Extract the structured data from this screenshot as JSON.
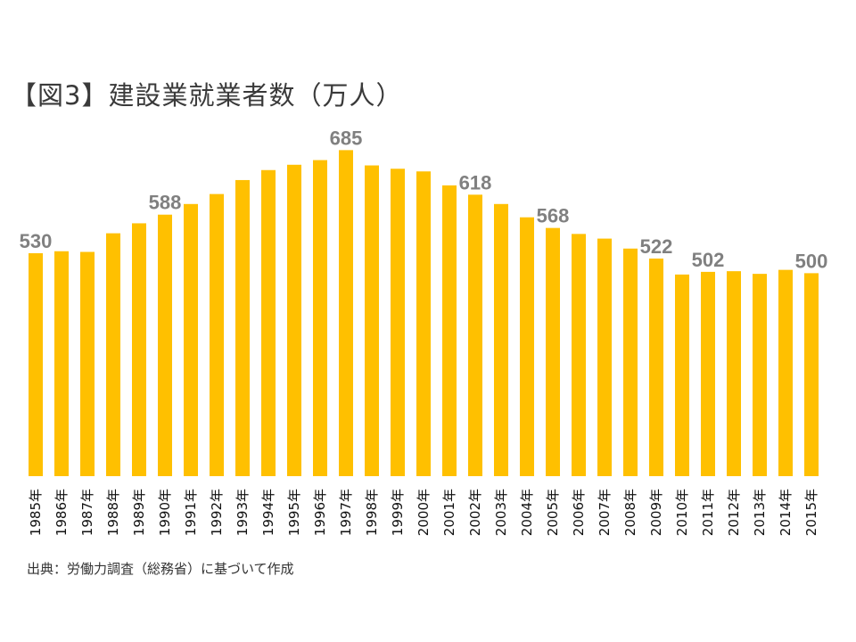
{
  "title": "【図3】建設業就業者数（万人）",
  "source": "出典：労働力調査（総務省）に基づいて作成",
  "bar_color": "#FFC000",
  "label_color": "#808080",
  "chart_data": {
    "type": "bar",
    "title": "【図3】建設業就業者数（万人）",
    "categories": [
      "1985年",
      "1986年",
      "1987年",
      "1988年",
      "1989年",
      "1990年",
      "1991年",
      "1992年",
      "1993年",
      "1994年",
      "1995年",
      "1996年",
      "1997年",
      "1998年",
      "1999年",
      "2000年",
      "2001年",
      "2002年",
      "2003年",
      "2004年",
      "2005年",
      "2006年",
      "2007年",
      "2008年",
      "2009年",
      "2010年",
      "2011年",
      "2012年",
      "2013年",
      "2014年",
      "2015年"
    ],
    "values": [
      530,
      533,
      532,
      560,
      575,
      588,
      604,
      619,
      640,
      655,
      663,
      670,
      685,
      662,
      657,
      653,
      632,
      618,
      604,
      584,
      568,
      559,
      552,
      537,
      522,
      498,
      502,
      503,
      499,
      505,
      500
    ],
    "data_labels": [
      {
        "index": 0,
        "text": "530"
      },
      {
        "index": 5,
        "text": "588"
      },
      {
        "index": 12,
        "text": "685"
      },
      {
        "index": 17,
        "text": "618"
      },
      {
        "index": 20,
        "text": "568"
      },
      {
        "index": 24,
        "text": "522"
      },
      {
        "index": 26,
        "text": "502"
      },
      {
        "index": 30,
        "text": "500"
      }
    ],
    "xlabel": "",
    "ylabel": "",
    "grid": false,
    "legend": "none"
  }
}
